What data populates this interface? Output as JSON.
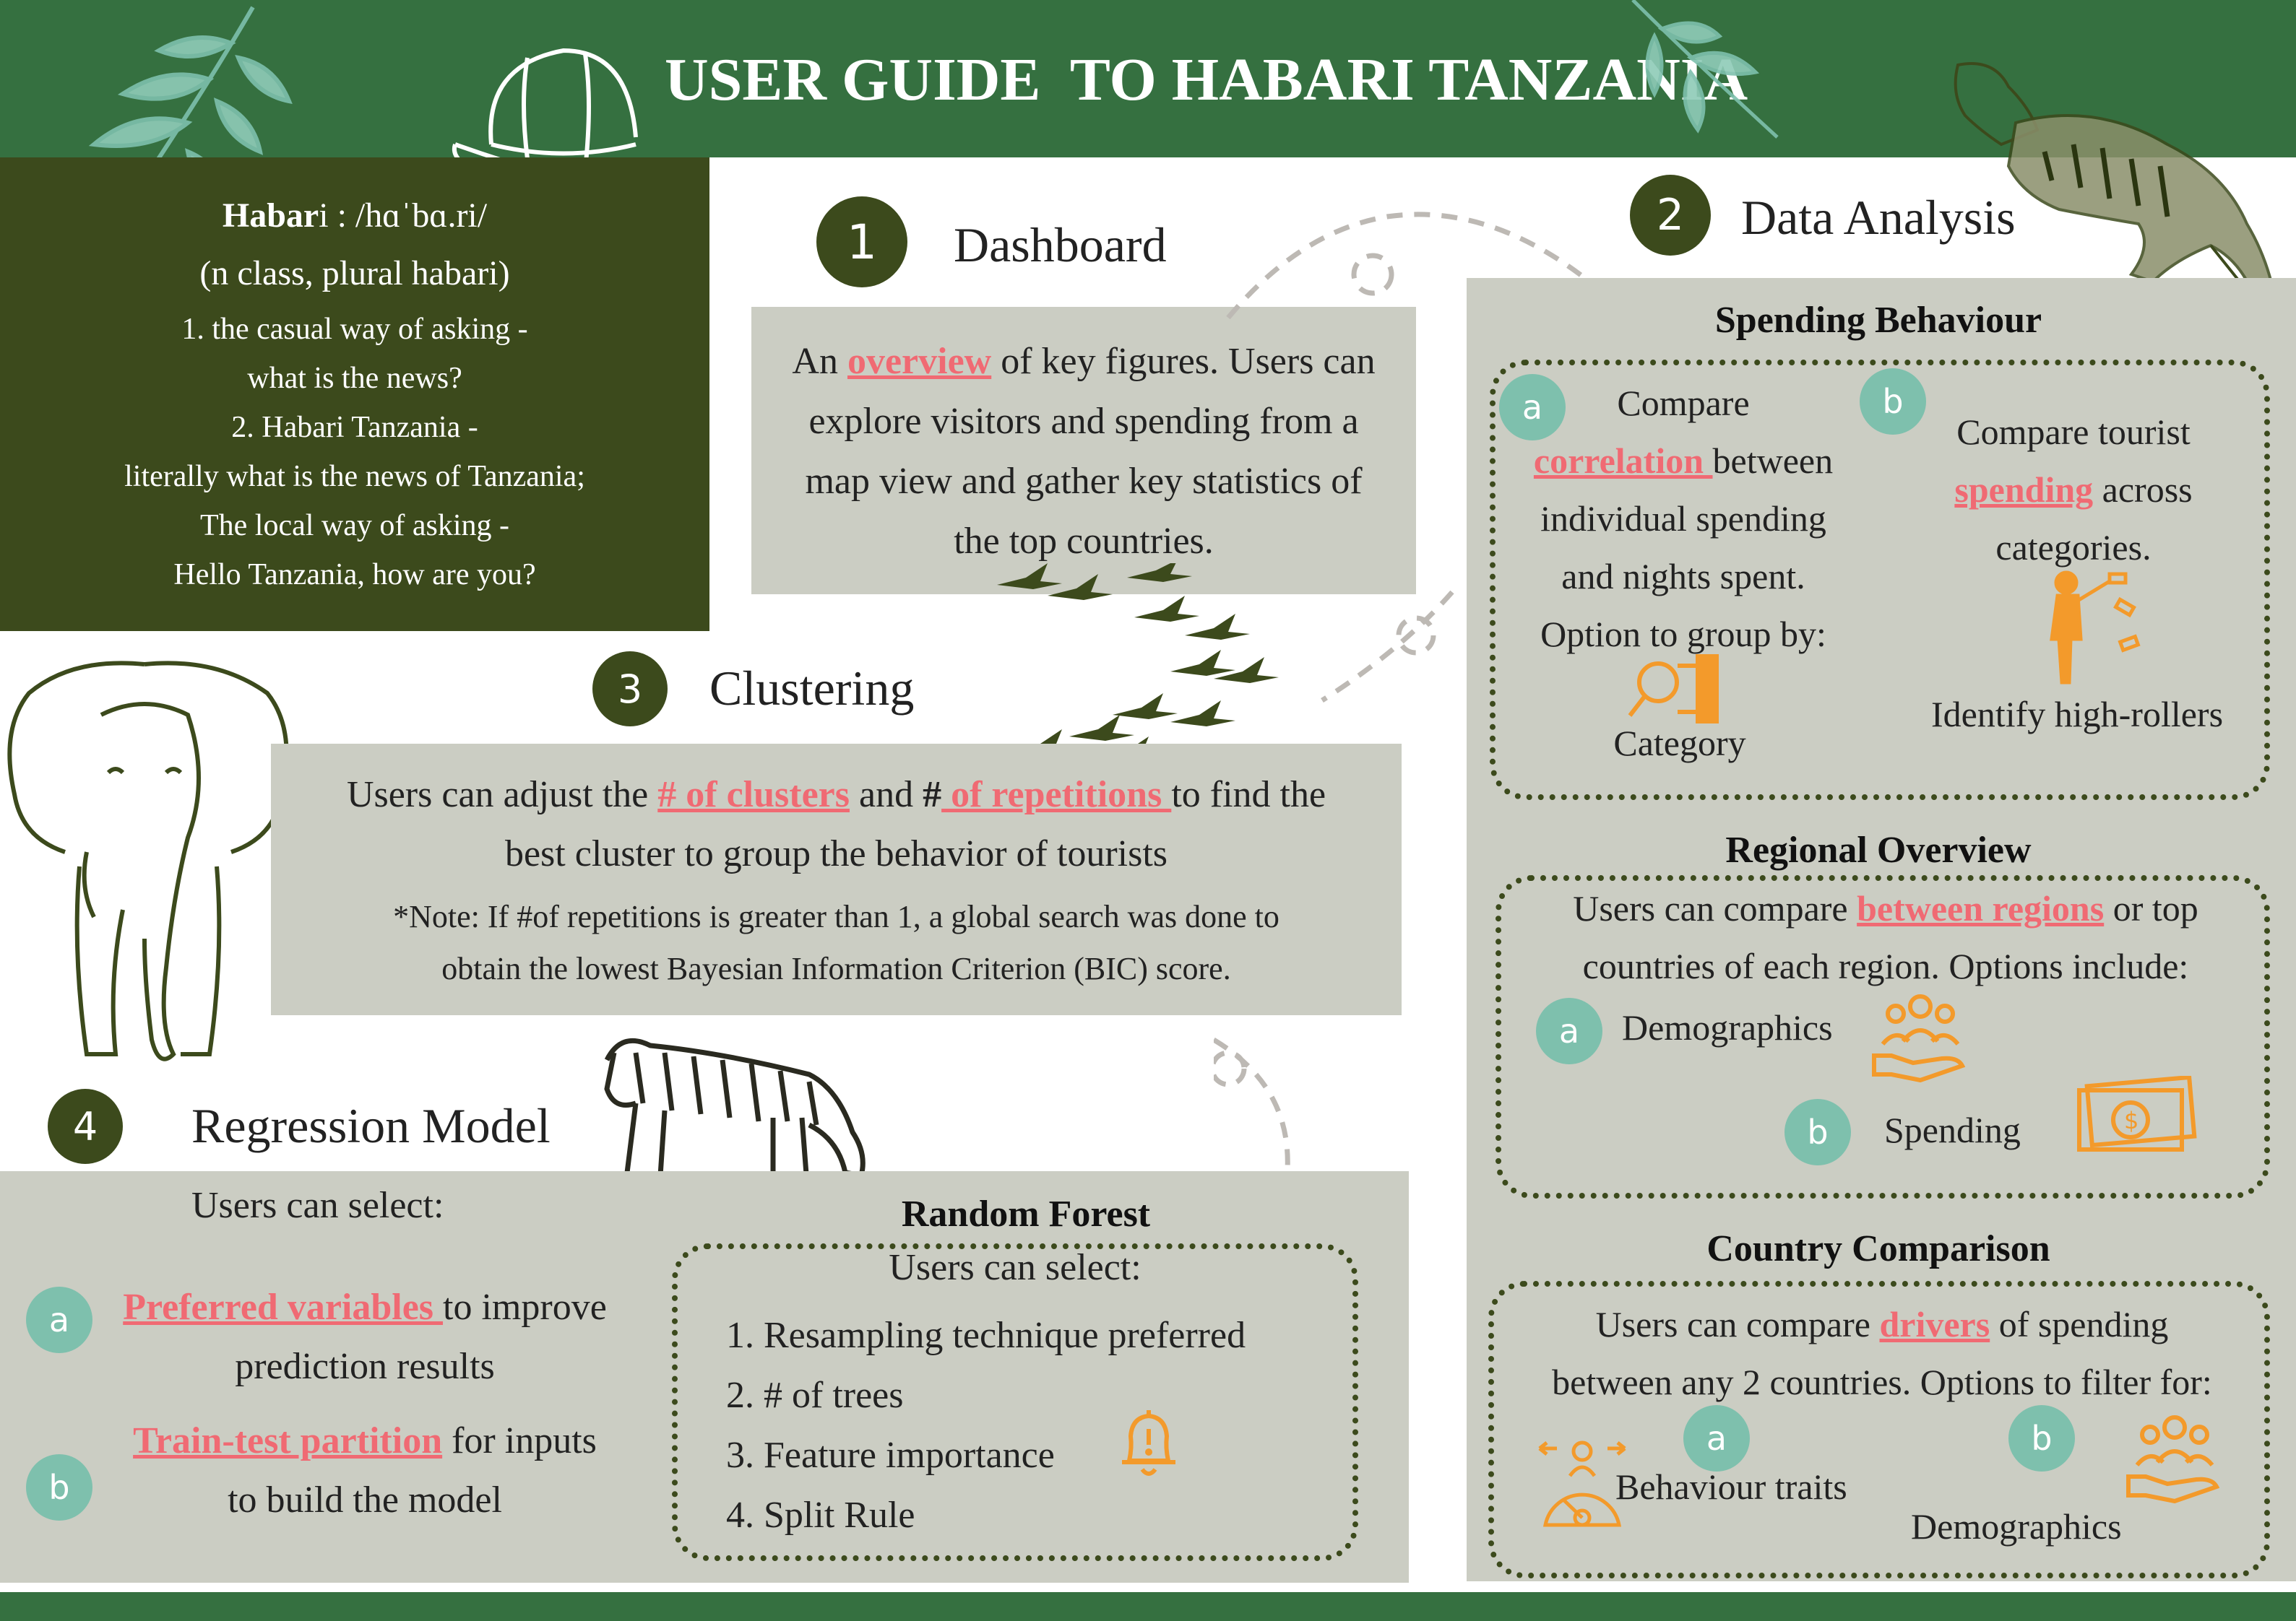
{
  "header": {
    "title": "USER GUIDE  TO HABARI TANZANIA"
  },
  "definition": {
    "word": "Habar",
    "word_tail": "i",
    "pronunciation": " : /hɑˈbɑ.ri/",
    "grammar": "(n class, plural habari)",
    "lines": [
      "1. the casual way of asking -",
      "what is the news?",
      "2. Habari Tanzania -",
      "literally what is the news of Tanzania;",
      "The local way of asking -",
      "Hello Tanzania, how are you?"
    ]
  },
  "dashboard": {
    "number": "1",
    "title": "Dashboard",
    "text_pre": "An ",
    "highlight": "overview",
    "text_post": " of key figures. Users can explore visitors and spending from a map view and gather key statistics of the top countries."
  },
  "data_analysis": {
    "number": "2",
    "title": "Data Analysis",
    "spending": {
      "title": "Spending Behaviour",
      "a": {
        "badge": "a",
        "line1": "Compare",
        "highlight": "correlation ",
        "line2_post": "between",
        "line3": "individual spending",
        "line4": "and nights spent.",
        "line5": "Option to group by:",
        "icon_label": "Category"
      },
      "b": {
        "badge": "b",
        "line1": "Compare tourist",
        "highlight": "spending",
        "line2_post": " across",
        "line3": "categories.",
        "icon_label": "Identify high-rollers"
      }
    },
    "regional": {
      "title": "Regional Overview",
      "line1_pre": "Users can compare ",
      "highlight": "between regions",
      "line1_post": " or top",
      "line2": "countries of each region. Options include:",
      "a": {
        "badge": "a",
        "label": "Demographics"
      },
      "b": {
        "badge": "b",
        "label": "Spending"
      }
    },
    "country": {
      "title": "Country Comparison",
      "line1_pre": "Users can compare ",
      "highlight": "drivers",
      "line1_post": " of spending",
      "line2": "between any 2 countries. Options to filter for:",
      "a": {
        "badge": "a",
        "label": "Behaviour traits"
      },
      "b": {
        "badge": "b",
        "label": "Demographics"
      }
    }
  },
  "clustering": {
    "number": "3",
    "title": "Clustering",
    "line1_pre": "Users can adjust the ",
    "highlight1": "# of clusters",
    "line1_mid": " and ",
    "hash": "#",
    "highlight2": " of repetitions ",
    "line1_post": "to find the",
    "line2": "best cluster to group the behavior of tourists",
    "note1": "*Note: If #of repetitions is greater than 1, a global search was done to",
    "note2": "obtain the lowest Bayesian Information Criterion (BIC) score."
  },
  "regression": {
    "number": "4",
    "title": "Regression Model",
    "intro": "Users can select:",
    "a": {
      "badge": "a",
      "highlight": "Preferred variables ",
      "post": "to improve",
      "line2": "prediction results"
    },
    "b": {
      "badge": "b",
      "highlight": "Train-test partition",
      "post": " for inputs",
      "line2": "to build the model"
    },
    "random_forest": {
      "title": "Random Forest",
      "intro": "Users can select:",
      "items": [
        "1. Resampling technique preferred",
        "2. # of trees",
        "3. Feature importance",
        "4. Split Rule"
      ]
    }
  },
  "colors": {
    "header_green": "#357040",
    "dark_olive": "#3c4a1c",
    "grey_panel": "#cbcdc3",
    "highlight": "#f06a73",
    "teal_badge": "#7ec0ad",
    "icon_orange": "#f39a2b"
  }
}
